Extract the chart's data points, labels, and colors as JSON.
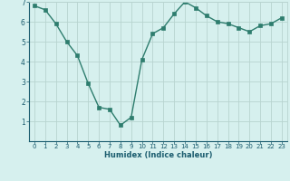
{
  "x": [
    0,
    1,
    2,
    3,
    4,
    5,
    6,
    7,
    8,
    9,
    10,
    11,
    12,
    13,
    14,
    15,
    16,
    17,
    18,
    19,
    20,
    21,
    22,
    23
  ],
  "y": [
    6.8,
    6.6,
    5.9,
    5.0,
    4.3,
    2.9,
    1.7,
    1.6,
    0.8,
    1.2,
    4.1,
    5.4,
    5.7,
    6.4,
    7.0,
    6.7,
    6.3,
    6.0,
    5.9,
    5.7,
    5.5,
    5.8,
    5.9,
    6.2
  ],
  "xlabel": "Humidex (Indice chaleur)",
  "line_color": "#2e7d6e",
  "marker_color": "#2e7d6e",
  "bg_color": "#d6f0ee",
  "grid_color": "#b8d4d0",
  "tick_color": "#1a5c6e",
  "label_color": "#1a5c6e",
  "ylim": [
    0,
    7
  ],
  "xlim_min": -0.5,
  "xlim_max": 23.5,
  "yticks": [
    1,
    2,
    3,
    4,
    5,
    6,
    7
  ],
  "xticks": [
    0,
    1,
    2,
    3,
    4,
    5,
    6,
    7,
    8,
    9,
    10,
    11,
    12,
    13,
    14,
    15,
    16,
    17,
    18,
    19,
    20,
    21,
    22,
    23
  ],
  "xlabel_fontsize": 6.0,
  "tick_fontsize": 5.0,
  "linewidth": 1.0,
  "markersize": 2.2
}
